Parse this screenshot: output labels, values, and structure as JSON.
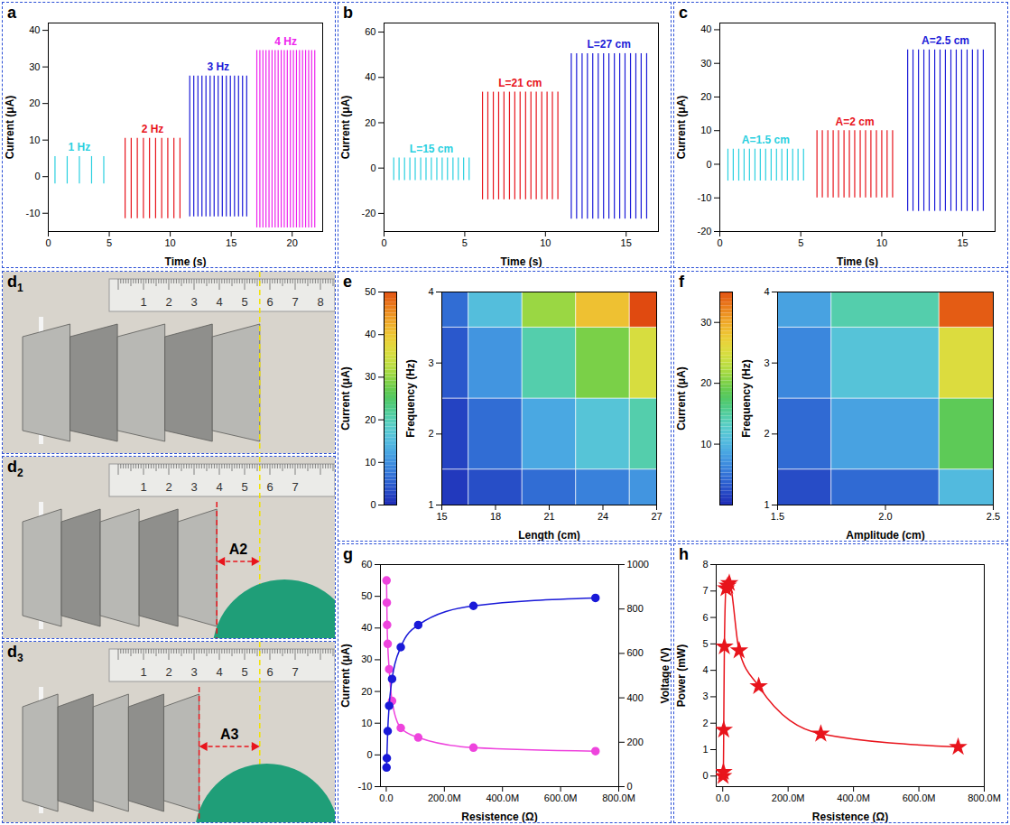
{
  "chart_data": [
    {
      "panel": "a",
      "type": "line",
      "xlabel": "Time (s)",
      "ylabel": "Current (μA)",
      "xlim": [
        0,
        22.5
      ],
      "xticks": [
        0,
        5,
        10,
        15,
        20
      ],
      "ylim": [
        -15,
        42
      ],
      "yticks": [
        -10,
        0,
        10,
        20,
        30,
        40
      ],
      "series": [
        {
          "name": "1 Hz",
          "color": "#2ad0e0",
          "x": [
            0.55,
            1.55,
            2.55,
            3.55,
            4.55
          ],
          "values": [
            5.5,
            5.5,
            5.5,
            5.5,
            5.5
          ],
          "lows": [
            -2,
            -2,
            -2,
            -2,
            -2
          ]
        },
        {
          "name": "2 Hz",
          "color": "#e8141c",
          "x": [
            6.3,
            6.8,
            7.3,
            7.8,
            8.3,
            8.8,
            9.3,
            9.8,
            10.3,
            10.8
          ],
          "values": [
            10.5,
            10.5,
            10.5,
            10.5,
            10.5,
            10.5,
            10.5,
            10.5,
            10.5,
            10.5
          ],
          "lows": [
            -11.5,
            -11.5,
            -11.5,
            -11.5,
            -11.5,
            -11.5,
            -11.5,
            -11.5,
            -11.5,
            -11.5
          ]
        },
        {
          "name": "3 Hz",
          "color": "#1a1ad8",
          "x": [
            11.6,
            11.93,
            12.27,
            12.6,
            12.93,
            13.27,
            13.6,
            13.93,
            14.27,
            14.6,
            14.93,
            15.27,
            15.6,
            15.93,
            16.27
          ],
          "values": [
            27.5,
            27.5,
            27.5,
            27.5,
            27.5,
            27.5,
            27.5,
            27.5,
            27.5,
            27.5,
            27.5,
            27.5,
            27.5,
            27.5,
            27.5
          ],
          "lows": [
            -11,
            -11,
            -11,
            -11,
            -11,
            -11,
            -11,
            -11,
            -11,
            -11,
            -11,
            -11,
            -11,
            -11,
            -11
          ]
        },
        {
          "name": "4 Hz",
          "color": "#ee22ee",
          "x": [
            17.1,
            17.35,
            17.6,
            17.85,
            18.1,
            18.35,
            18.6,
            18.85,
            19.1,
            19.35,
            19.6,
            19.85,
            20.1,
            20.35,
            20.6,
            20.85,
            21.1,
            21.35,
            21.6,
            21.85
          ],
          "values": [
            34.5,
            34.5,
            34.5,
            34.5,
            34.5,
            34.5,
            34.5,
            34.5,
            34.5,
            34.5,
            34.5,
            34.5,
            34.5,
            34.5,
            34.5,
            34.5,
            34.5,
            34.5,
            34.5,
            34.5
          ],
          "lows": [
            -14,
            -14,
            -14,
            -14,
            -14,
            -14,
            -14,
            -14,
            -14,
            -14,
            -14,
            -14,
            -14,
            -14,
            -14,
            -14,
            -14,
            -14,
            -14,
            -14
          ]
        }
      ]
    },
    {
      "panel": "b",
      "type": "line",
      "xlabel": "Time (s)",
      "ylabel": "Current (μA)",
      "xlim": [
        0,
        17
      ],
      "xticks": [
        0,
        5,
        10,
        15
      ],
      "ylim": [
        -28,
        64
      ],
      "yticks": [
        -20,
        0,
        20,
        40,
        60
      ],
      "series": [
        {
          "name": "L=15 cm",
          "color": "#2ad0e0",
          "x": [
            0.6,
            0.93,
            1.27,
            1.6,
            1.93,
            2.27,
            2.6,
            2.93,
            3.27,
            3.6,
            3.93,
            4.27,
            4.6,
            4.93,
            5.27
          ],
          "values": [
            4.5,
            4.5,
            4.5,
            4.5,
            4.5,
            4.5,
            4.5,
            4.5,
            4.5,
            4.5,
            4.5,
            4.5,
            4.5,
            4.5,
            4.5
          ],
          "lows": [
            -5.5,
            -5.5,
            -5.5,
            -5.5,
            -5.5,
            -5.5,
            -5.5,
            -5.5,
            -5.5,
            -5.5,
            -5.5,
            -5.5,
            -5.5,
            -5.5,
            -5.5
          ]
        },
        {
          "name": "L=21 cm",
          "color": "#e8141c",
          "x": [
            6.1,
            6.43,
            6.77,
            7.1,
            7.43,
            7.77,
            8.1,
            8.43,
            8.77,
            9.1,
            9.43,
            9.77,
            10.1,
            10.43,
            10.77
          ],
          "values": [
            33.5,
            33.5,
            33.5,
            33.5,
            33.5,
            33.5,
            33.5,
            33.5,
            33.5,
            33.5,
            33.5,
            33.5,
            33.5,
            33.5,
            33.5
          ],
          "lows": [
            -14,
            -14,
            -14,
            -14,
            -14,
            -14,
            -14,
            -14,
            -14,
            -14,
            -14,
            -14,
            -14,
            -14,
            -14
          ]
        },
        {
          "name": "L=27 cm",
          "color": "#1a1ad8",
          "x": [
            11.6,
            11.93,
            12.27,
            12.6,
            12.93,
            13.27,
            13.6,
            13.93,
            14.27,
            14.6,
            14.93,
            15.27,
            15.6,
            15.93,
            16.27
          ],
          "values": [
            50.5,
            50.5,
            50.5,
            50.5,
            50.5,
            50.5,
            50.5,
            50.5,
            50.5,
            50.5,
            50.5,
            50.5,
            50.5,
            50.5,
            50.5
          ],
          "lows": [
            -22.5,
            -22.5,
            -22.5,
            -22.5,
            -22.5,
            -22.5,
            -22.5,
            -22.5,
            -22.5,
            -22.5,
            -22.5,
            -22.5,
            -22.5,
            -22.5,
            -22.5
          ]
        }
      ]
    },
    {
      "panel": "c",
      "type": "line",
      "xlabel": "Time (s)",
      "ylabel": "Current (μA)",
      "xlim": [
        0,
        17
      ],
      "xticks": [
        0,
        5,
        10,
        15
      ],
      "ylim": [
        -20,
        42
      ],
      "yticks": [
        -20,
        -10,
        0,
        10,
        20,
        30,
        40
      ],
      "series": [
        {
          "name": "A=1.5 cm",
          "color": "#2ad0e0",
          "x": [
            0.5,
            0.83,
            1.17,
            1.5,
            1.83,
            2.17,
            2.5,
            2.83,
            3.17,
            3.5,
            3.83,
            4.17,
            4.5,
            4.83,
            5.17
          ],
          "values": [
            4.5,
            4.5,
            4.5,
            4.5,
            4.5,
            4.5,
            4.5,
            4.5,
            4.5,
            4.5,
            4.5,
            4.5,
            4.5,
            4.5,
            4.5
          ],
          "lows": [
            -5,
            -5,
            -5,
            -5,
            -5,
            -5,
            -5,
            -5,
            -5,
            -5,
            -5,
            -5,
            -5,
            -5,
            -5
          ]
        },
        {
          "name": "A=2 cm",
          "color": "#e8141c",
          "x": [
            6.0,
            6.33,
            6.67,
            7.0,
            7.33,
            7.67,
            8.0,
            8.33,
            8.67,
            9.0,
            9.33,
            9.67,
            10.0,
            10.33,
            10.67
          ],
          "values": [
            10,
            10,
            10,
            10,
            10,
            10,
            10,
            10,
            10,
            10,
            10,
            10,
            10,
            10,
            10
          ],
          "lows": [
            -10,
            -10,
            -10,
            -10,
            -10,
            -10,
            -10,
            -10,
            -10,
            -10,
            -10,
            -10,
            -10,
            -10,
            -10
          ]
        },
        {
          "name": "A=2.5 cm",
          "color": "#1a1ad8",
          "x": [
            11.6,
            11.93,
            12.27,
            12.6,
            12.93,
            13.27,
            13.6,
            13.93,
            14.27,
            14.6,
            14.93,
            15.27,
            15.6,
            15.93,
            16.27
          ],
          "values": [
            34,
            34,
            34,
            34,
            34,
            34,
            34,
            34,
            34,
            34,
            34,
            34,
            34,
            34,
            34
          ],
          "lows": [
            -14,
            -14,
            -14,
            -14,
            -14,
            -14,
            -14,
            -14,
            -14,
            -14,
            -14,
            -14,
            -14,
            -14,
            -14
          ]
        }
      ]
    },
    {
      "panel": "e",
      "type": "heatmap",
      "xlabel": "Length (cm)",
      "ylabel": "Frequency (Hz)",
      "clabel": "Current (μA)",
      "x": [
        15,
        18,
        21,
        24,
        27
      ],
      "y": [
        1,
        2,
        3,
        4
      ],
      "cells": [
        [
          1,
          3,
          6,
          8,
          10
        ],
        [
          2,
          6,
          12,
          16,
          20
        ],
        [
          4,
          10,
          20,
          28,
          35
        ],
        [
          6,
          15,
          30,
          40,
          50
        ]
      ],
      "xlim": [
        15,
        27
      ],
      "xticks": [
        15,
        18,
        21,
        24,
        27
      ],
      "ylim": [
        1,
        4
      ],
      "yticks": [
        1,
        2,
        3,
        4
      ],
      "clim": [
        0,
        50
      ],
      "cticks": [
        0,
        10,
        20,
        30,
        40,
        50
      ]
    },
    {
      "panel": "f",
      "type": "heatmap",
      "xlabel": "Amplitude (cm)",
      "ylabel": "Frequency (Hz)",
      "clabel": "Current (μA)",
      "x": [
        1.5,
        2,
        2.5
      ],
      "y": [
        1,
        2,
        3,
        4
      ],
      "cells": [
        [
          2,
          4,
          10
        ],
        [
          4,
          8,
          18
        ],
        [
          6,
          11,
          25
        ],
        [
          8,
          14,
          34
        ]
      ],
      "xlim": [
        1.5,
        2.5
      ],
      "xticks": [
        1.5,
        {
          "value": 2,
          "label": "2.0"
        },
        2.5
      ],
      "ylim": [
        1,
        4
      ],
      "yticks": [
        1,
        2,
        3,
        4
      ],
      "clim": [
        0,
        35
      ],
      "cticks": [
        10,
        20,
        30
      ]
    },
    {
      "panel": "g",
      "type": "scatter",
      "xlabel": "Resistence (Ω)",
      "ylabel": "Current (μA)",
      "y2label": "Voltage (V)",
      "xlim": [
        -20000000,
        800000000
      ],
      "xticks": [
        {
          "value": 0,
          "label": "0.0"
        },
        {
          "value": 200000000,
          "label": "200.0M"
        },
        {
          "value": 400000000,
          "label": "400.0M"
        },
        {
          "value": 600000000,
          "label": "600.0M"
        },
        {
          "value": 800000000,
          "label": "800.0M"
        }
      ],
      "ylim": [
        -10,
        60
      ],
      "yticks": [
        -10,
        0,
        10,
        20,
        30,
        40,
        50,
        60
      ],
      "y2lim": [
        0,
        1000
      ],
      "y2ticks": [
        0,
        200,
        400,
        600,
        800,
        1000
      ],
      "series": [
        {
          "color": "#ee44dd",
          "marker": "circle",
          "line_style": "solid",
          "x": [
            1000000,
            2000000,
            3000000,
            5000000,
            10000000,
            20000000,
            50000000,
            110000000,
            300000000,
            720000000
          ],
          "values": [
            55,
            48,
            41,
            35,
            27,
            17,
            8.5,
            5.5,
            2.3,
            1.2
          ]
        },
        {
          "color": "#1a1ad8",
          "marker": "circle",
          "line_style": "solid",
          "axis": "y2",
          "x": [
            1000000,
            2000000,
            5000000,
            10000000,
            20000000,
            50000000,
            110000000,
            300000000,
            720000000
          ],
          "values": [
            86,
            128,
            250,
            364,
            485,
            628,
            728,
            814,
            850
          ]
        }
      ]
    },
    {
      "panel": "h",
      "type": "scatter",
      "xlabel": "Resistence (Ω)",
      "ylabel": "Power (mW)",
      "xlim": [
        -20000000,
        800000000
      ],
      "xticks": [
        {
          "value": 0,
          "label": "0.0"
        },
        {
          "value": 200000000,
          "label": "200.0M"
        },
        {
          "value": 400000000,
          "label": "400.0M"
        },
        {
          "value": 600000000,
          "label": "600.0M"
        },
        {
          "value": 800000000,
          "label": "800.0M"
        }
      ],
      "ylim": [
        -0.4,
        8
      ],
      "yticks": [
        0,
        1,
        2,
        3,
        4,
        5,
        6,
        7,
        8
      ],
      "series": [
        {
          "color": "#e8141c",
          "marker": "star",
          "line_style": "solid",
          "x": [
            1000000,
            2000000,
            3000000,
            5000000,
            10000000,
            15000000,
            20000000,
            50000000,
            110000000,
            300000000,
            720000000
          ],
          "values": [
            0,
            0.15,
            1.75,
            4.9,
            7.1,
            7.2,
            7.3,
            4.75,
            3.4,
            1.6,
            1.1
          ]
        }
      ]
    }
  ],
  "photos": [
    {
      "panel": "d1",
      "ruler": [
        1,
        2,
        3,
        4,
        5,
        6,
        7,
        8
      ]
    },
    {
      "panel": "d2",
      "ruler": [
        1,
        2,
        3,
        4,
        5,
        6,
        7
      ],
      "annotation": "A2"
    },
    {
      "panel": "d3",
      "ruler": [
        1,
        2,
        3,
        4,
        5,
        6,
        7
      ],
      "annotation": "A3"
    }
  ]
}
